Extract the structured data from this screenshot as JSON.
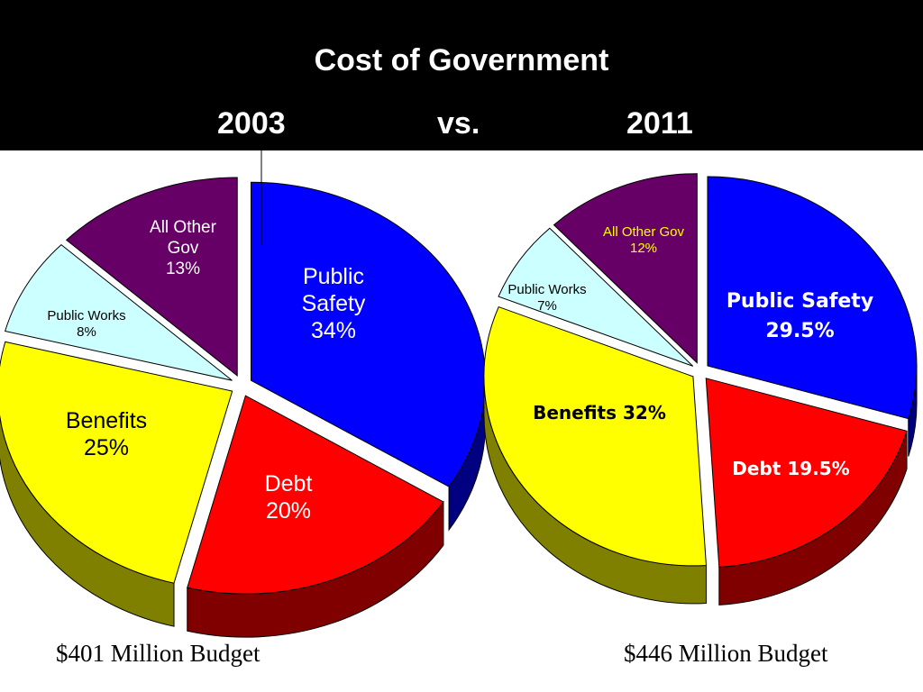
{
  "title": "Cost of Government",
  "year_left": "2003",
  "vs_label": "vs.",
  "year_right": "2011",
  "chart_data": [
    {
      "type": "pie",
      "year": "2003",
      "budget_label": "$401 Million Budget",
      "slices": [
        {
          "name": "Public Safety",
          "value": 34,
          "value_label": "34%",
          "color": "#0000ff"
        },
        {
          "name": "Debt",
          "value": 20,
          "value_label": "20%",
          "color": "#ff0000"
        },
        {
          "name": "Benefits",
          "value": 25,
          "value_label": "25%",
          "color": "#ffff00"
        },
        {
          "name": "Public Works",
          "value": 8,
          "value_label": "8%",
          "color": "#ccffff"
        },
        {
          "name": "All Other Gov",
          "name_lines": [
            "All Other",
            "Gov"
          ],
          "value": 13,
          "value_label": "13%",
          "color": "#660066"
        }
      ]
    },
    {
      "type": "pie",
      "year": "2011",
      "budget_label": "$446 Million Budget",
      "slices": [
        {
          "name": "Public Safety",
          "value": 29.5,
          "value_label": "29.5%",
          "color": "#0000ff"
        },
        {
          "name": "Debt",
          "value": 19.5,
          "value_label": "19.5%",
          "color": "#ff0000"
        },
        {
          "name": "Benefits",
          "value": 32,
          "value_label": "32%",
          "color": "#ffff00"
        },
        {
          "name": "Public Works",
          "value": 7,
          "value_label": "7%",
          "color": "#ccffff"
        },
        {
          "name": "All Other Gov",
          "value": 12,
          "value_label": "12%",
          "color": "#660066"
        }
      ]
    }
  ]
}
